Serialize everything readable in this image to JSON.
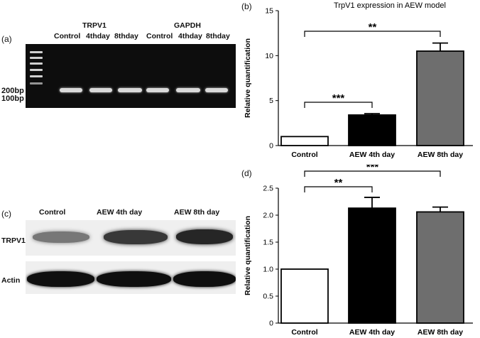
{
  "panel_a": {
    "label": "(a)",
    "group1": "TRPV1",
    "group2": "GAPDH",
    "lanes": [
      "Control",
      "4thday",
      "8thday",
      "Control",
      "4thday",
      "8thday"
    ],
    "marker_200": "200bp",
    "marker_100": "100bp"
  },
  "panel_c": {
    "label": "(c)",
    "lanes": [
      "Control",
      "AEW 4th day",
      "AEW 8th day"
    ],
    "row1": "TRPV1",
    "row2": "Actin",
    "trpv1_intensity": [
      0.45,
      0.8,
      0.9
    ],
    "actin_intensity": [
      1.0,
      1.0,
      1.0
    ]
  },
  "chart_data": [
    {
      "id": "b",
      "panel_label": "(b)",
      "type": "bar",
      "title": "TrpV1 expression in AEW model",
      "ylabel": "Relative quantification",
      "xlabel": "",
      "categories": [
        "Control",
        "AEW 4th day",
        "AEW 8th day"
      ],
      "values": [
        1.0,
        3.4,
        10.5
      ],
      "errors": [
        0,
        0.15,
        0.9
      ],
      "bar_colors": [
        "#ffffff",
        "#000000",
        "#6e6e6e"
      ],
      "ylim": [
        0,
        15
      ],
      "yticks": [
        0,
        5,
        10,
        15
      ],
      "significance": [
        {
          "from": 0,
          "to": 1,
          "label": "***"
        },
        {
          "from": 0,
          "to": 2,
          "label": "**"
        }
      ]
    },
    {
      "id": "d",
      "panel_label": "(d)",
      "type": "bar",
      "title": "",
      "ylabel": "Relative quantification",
      "xlabel": "",
      "categories": [
        "Control",
        "AEW 4th day",
        "AEW 8th day"
      ],
      "values": [
        1.0,
        2.13,
        2.06
      ],
      "errors": [
        0,
        0.2,
        0.09
      ],
      "bar_colors": [
        "#ffffff",
        "#000000",
        "#6e6e6e"
      ],
      "ylim": [
        0,
        2.5
      ],
      "yticks": [
        "0",
        "0.5",
        "1.0",
        "1.5",
        "2.0",
        "2.5"
      ],
      "significance": [
        {
          "from": 0,
          "to": 1,
          "label": "**"
        },
        {
          "from": 0,
          "to": 2,
          "label": "***"
        }
      ]
    }
  ]
}
